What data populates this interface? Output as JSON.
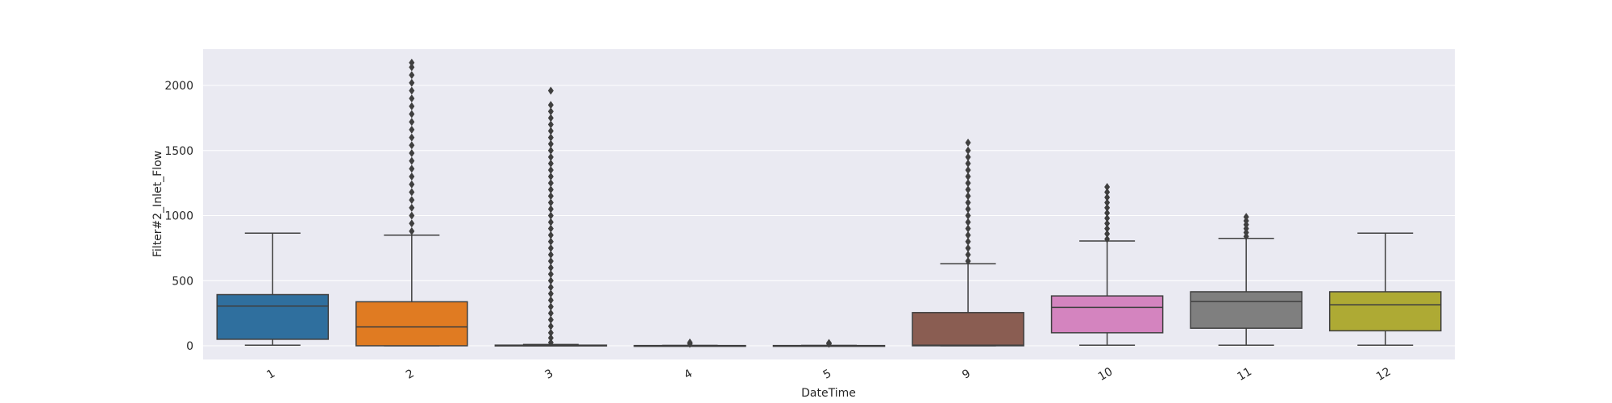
{
  "chart_data": {
    "type": "box",
    "xlabel": "DateTime",
    "ylabel": "Filter#2_Inlet_Flow",
    "ylim": [
      -100,
      2300
    ],
    "yticks": [
      0,
      500,
      1000,
      1500,
      2000
    ],
    "grid": true,
    "categories": [
      "1",
      "2",
      "3",
      "4",
      "5",
      "9",
      "10",
      "11",
      "12"
    ],
    "boxes": [
      {
        "category": "1",
        "color": "#2f6f9e",
        "whisker_low": 5,
        "q1": 50,
        "median": 305,
        "q3": 393,
        "whisker_high": 865,
        "outliers": []
      },
      {
        "category": "2",
        "color": "#e07b22",
        "whisker_low": 0,
        "q1": 0,
        "median": 145,
        "q3": 338,
        "whisker_high": 850,
        "outliers": [
          880,
          940,
          1000,
          1060,
          1120,
          1180,
          1240,
          1300,
          1360,
          1420,
          1480,
          1540,
          1600,
          1660,
          1720,
          1780,
          1840,
          1900,
          1960,
          2020,
          2080,
          2140,
          2175
        ]
      },
      {
        "category": "3",
        "color": "#3d8a3d",
        "whisker_low": 0,
        "q1": 0,
        "median": 2,
        "q3": 5,
        "whisker_high": 10,
        "outliers": [
          25,
          60,
          100,
          150,
          200,
          250,
          300,
          350,
          400,
          450,
          500,
          550,
          600,
          650,
          700,
          750,
          800,
          850,
          900,
          950,
          1000,
          1050,
          1100,
          1150,
          1200,
          1250,
          1300,
          1350,
          1400,
          1450,
          1500,
          1550,
          1600,
          1650,
          1700,
          1750,
          1800,
          1850,
          1960
        ]
      },
      {
        "category": "4",
        "color": "#c03d3e",
        "whisker_low": 0,
        "q1": 0,
        "median": 1,
        "q3": 2,
        "whisker_high": 3,
        "outliers": [
          15,
          25
        ]
      },
      {
        "category": "5",
        "color": "#8a6bb5",
        "whisker_low": 0,
        "q1": 0,
        "median": 1,
        "q3": 2,
        "whisker_high": 3,
        "outliers": [
          15,
          22
        ]
      },
      {
        "category": "9",
        "color": "#8a5d52",
        "whisker_low": 0,
        "q1": 0,
        "median": 5,
        "q3": 255,
        "whisker_high": 630,
        "outliers": [
          650,
          700,
          750,
          800,
          850,
          900,
          950,
          1000,
          1050,
          1100,
          1150,
          1200,
          1250,
          1300,
          1350,
          1400,
          1450,
          1500,
          1560
        ]
      },
      {
        "category": "10",
        "color": "#d484bf",
        "whisker_low": 5,
        "q1": 100,
        "median": 295,
        "q3": 383,
        "whisker_high": 805,
        "outliers": [
          820,
          860,
          900,
          940,
          980,
          1020,
          1060,
          1100,
          1140,
          1180,
          1220
        ]
      },
      {
        "category": "11",
        "color": "#7f7f7f",
        "whisker_low": 5,
        "q1": 135,
        "median": 340,
        "q3": 415,
        "whisker_high": 825,
        "outliers": [
          840,
          870,
          900,
          930,
          960,
          990
        ]
      },
      {
        "category": "12",
        "color": "#aeaa34",
        "whisker_low": 5,
        "q1": 115,
        "median": 315,
        "q3": 415,
        "whisker_high": 865,
        "outliers": []
      }
    ]
  }
}
